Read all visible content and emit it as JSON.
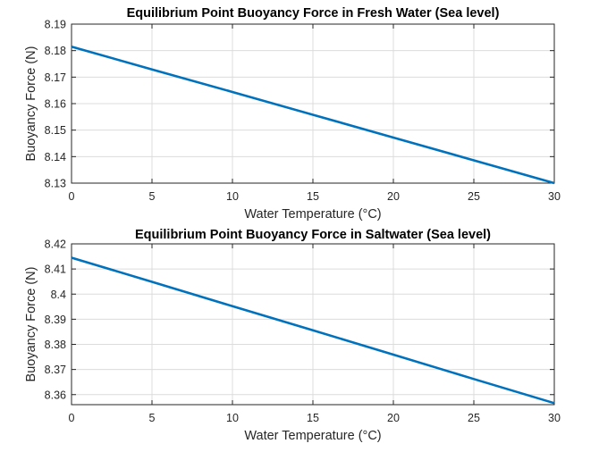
{
  "chart_data": [
    {
      "type": "line",
      "title": "Equilibrium Point Buoyancy Force in Fresh Water (Sea level)",
      "xlabel": "Water  Temperature  (°C)",
      "ylabel": "Buoyancy Force (N)",
      "xlim": [
        0,
        30
      ],
      "ylim": [
        8.13,
        8.19
      ],
      "xticks": [
        "0",
        "5",
        "10",
        "15",
        "20",
        "25",
        "30"
      ],
      "yticks": [
        "8.13",
        "8.14",
        "8.15",
        "8.16",
        "8.17",
        "8.18",
        "8.19"
      ],
      "grid": true,
      "color": "#0072BD",
      "series": [
        {
          "x": [
            0,
            5,
            10,
            15,
            20,
            25,
            30
          ],
          "y": [
            8.1815,
            8.1729,
            8.1644,
            8.1558,
            8.1472,
            8.1386,
            8.13
          ]
        }
      ]
    },
    {
      "type": "line",
      "title": "Equilibrium Point Buoyancy Force in Saltwater (Sea level)",
      "xlabel": "Water  Temperature  (°C)",
      "ylabel": "Buoyancy Force (N)",
      "xlim": [
        0,
        30
      ],
      "ylim": [
        8.356,
        8.42
      ],
      "xticks": [
        "0",
        "5",
        "10",
        "15",
        "20",
        "25",
        "30"
      ],
      "yticks": [
        "8.36",
        "8.37",
        "8.38",
        "8.39",
        "8.4",
        "8.41",
        "8.42"
      ],
      "grid": true,
      "color": "#0072BD",
      "series": [
        {
          "x": [
            0,
            5,
            10,
            15,
            20,
            25,
            30
          ],
          "y": [
            8.4145,
            8.4049,
            8.3952,
            8.3856,
            8.3759,
            8.3662,
            8.3566
          ]
        }
      ]
    }
  ]
}
